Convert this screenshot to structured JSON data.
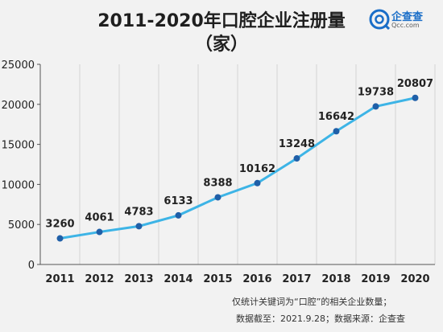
{
  "title_line1": "2011-2020年口腔企业注册量",
  "title_line2": "（家）",
  "logo": {
    "name": "企查查",
    "sub": "Qcc.com",
    "icon": "qcc-logo-icon",
    "color": "#1a6ec8"
  },
  "notes": {
    "line1": "仅统计关键词为“口腔”的相关企业数量；",
    "line2": "数据截至：2021.9.28；数据来源：企查查"
  },
  "chart_data": {
    "type": "line",
    "categories": [
      "2011",
      "2012",
      "2013",
      "2014",
      "2015",
      "2016",
      "2017",
      "2018",
      "2019",
      "2020"
    ],
    "values": [
      3260,
      4061,
      4783,
      6133,
      8388,
      10162,
      13248,
      16642,
      19738,
      20807
    ],
    "yticks": [
      0,
      5000,
      10000,
      15000,
      20000,
      25000
    ],
    "ylim": [
      0,
      25000
    ],
    "grid": "vertical",
    "line_color": "#3db4e6",
    "marker_color": "#1f5fa8"
  }
}
